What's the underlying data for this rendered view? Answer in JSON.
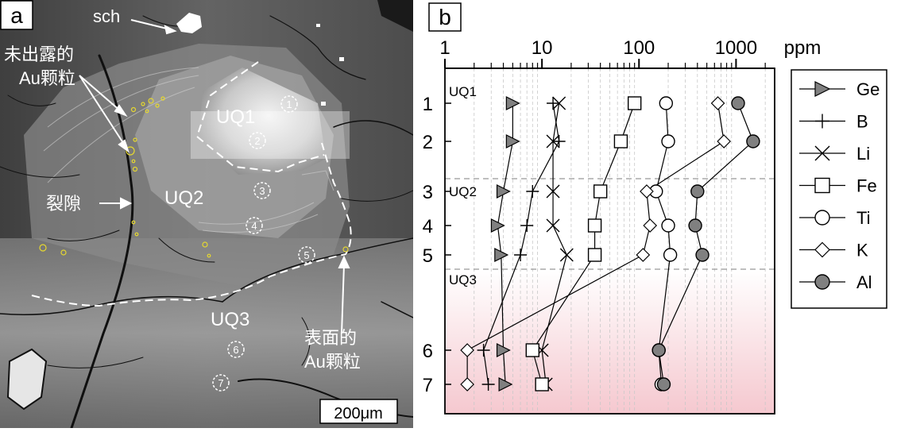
{
  "panel_a": {
    "label": "a",
    "labels": {
      "sch": "sch",
      "unexposed_1": "未出露的",
      "unexposed_2": "Au颗粒",
      "fracture": "裂隙",
      "uq1": "UQ1",
      "uq2": "UQ2",
      "uq3": "UQ3",
      "surface_1": "表面的",
      "surface_2": "Au颗粒",
      "scale_bar": "200μm"
    },
    "spot_numbers": [
      "1",
      "2",
      "3",
      "4",
      "5",
      "6",
      "7"
    ]
  },
  "chart_data": {
    "type": "scatter",
    "panel_label": "b",
    "x_unit": "ppm",
    "x_scale": "log",
    "x_ticks": [
      1,
      10,
      100,
      1000
    ],
    "xlim": [
      1,
      2500
    ],
    "y_ticks": [
      1,
      2,
      3,
      4,
      5,
      6,
      7
    ],
    "zone_labels": [
      "UQ1",
      "UQ2",
      "UQ3"
    ],
    "boundary_style": "dashed",
    "grid": "vertical minor dashed",
    "legend_position": "right",
    "background_gradient": [
      "#ffffff",
      "#f5c8cf"
    ],
    "series": [
      {
        "name": "Ge",
        "marker": "triangle-right",
        "fill": "#808080",
        "values": [
          5,
          5,
          4,
          3.5,
          3.8,
          4,
          4.2
        ]
      },
      {
        "name": "B",
        "marker": "plus",
        "fill": "none",
        "values": [
          13,
          15,
          8,
          7,
          6,
          2.5,
          2.8
        ]
      },
      {
        "name": "Li",
        "marker": "x",
        "fill": "none",
        "values": [
          15,
          13,
          13,
          13,
          18,
          10,
          11
        ]
      },
      {
        "name": "Fe",
        "marker": "square",
        "fill": "#ffffff",
        "values": [
          90,
          65,
          40,
          35,
          35,
          8,
          10
        ]
      },
      {
        "name": "Ti",
        "marker": "circle",
        "fill": "#ffffff",
        "values": [
          190,
          200,
          150,
          200,
          210,
          160,
          170
        ]
      },
      {
        "name": "K",
        "marker": "diamond",
        "fill": "#ffffff",
        "values": [
          650,
          750,
          120,
          130,
          110,
          1.7,
          1.7
        ]
      },
      {
        "name": "Al",
        "marker": "circle",
        "fill": "#808080",
        "values": [
          1050,
          1500,
          400,
          380,
          450,
          160,
          180
        ]
      }
    ]
  }
}
